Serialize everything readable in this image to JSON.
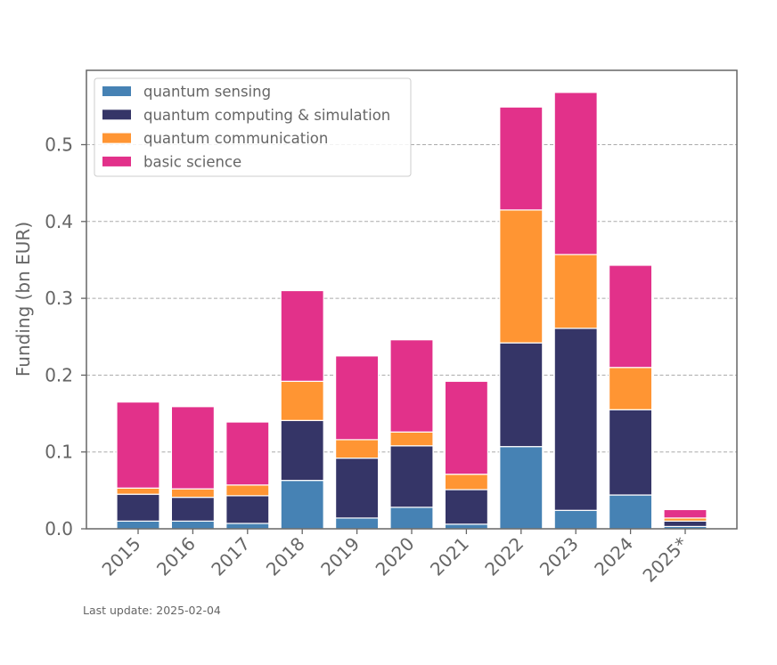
{
  "chart_data": {
    "type": "bar",
    "stacked": true,
    "categories": [
      "2015",
      "2016",
      "2017",
      "2018",
      "2019",
      "2020",
      "2021",
      "2022",
      "2023",
      "2024",
      "2025*"
    ],
    "series": [
      {
        "name": "quantum sensing",
        "color": "#4682b4",
        "values": [
          0.01,
          0.01,
          0.007,
          0.063,
          0.014,
          0.028,
          0.006,
          0.107,
          0.024,
          0.044,
          0.003
        ]
      },
      {
        "name": "quantum computing & simulation",
        "color": "#353567",
        "values": [
          0.035,
          0.031,
          0.036,
          0.078,
          0.078,
          0.08,
          0.045,
          0.135,
          0.237,
          0.111,
          0.007
        ]
      },
      {
        "name": "quantum communication",
        "color": "#ff9533",
        "values": [
          0.008,
          0.011,
          0.014,
          0.051,
          0.024,
          0.018,
          0.02,
          0.173,
          0.096,
          0.055,
          0.004
        ]
      },
      {
        "name": "basic science",
        "color": "#e2318a",
        "values": [
          0.112,
          0.107,
          0.082,
          0.118,
          0.109,
          0.12,
          0.121,
          0.134,
          0.211,
          0.133,
          0.011
        ]
      }
    ],
    "title": "",
    "xlabel": "",
    "ylabel": "Funding (bn EUR)",
    "ylim": [
      0,
      0.59
    ],
    "yticks": [
      "0.0",
      "0.1",
      "0.2",
      "0.3",
      "0.4",
      "0.5"
    ],
    "grid": "horizontal dashed",
    "legend_position": "top-left"
  },
  "footnote": "Last update: 2025-02-04"
}
